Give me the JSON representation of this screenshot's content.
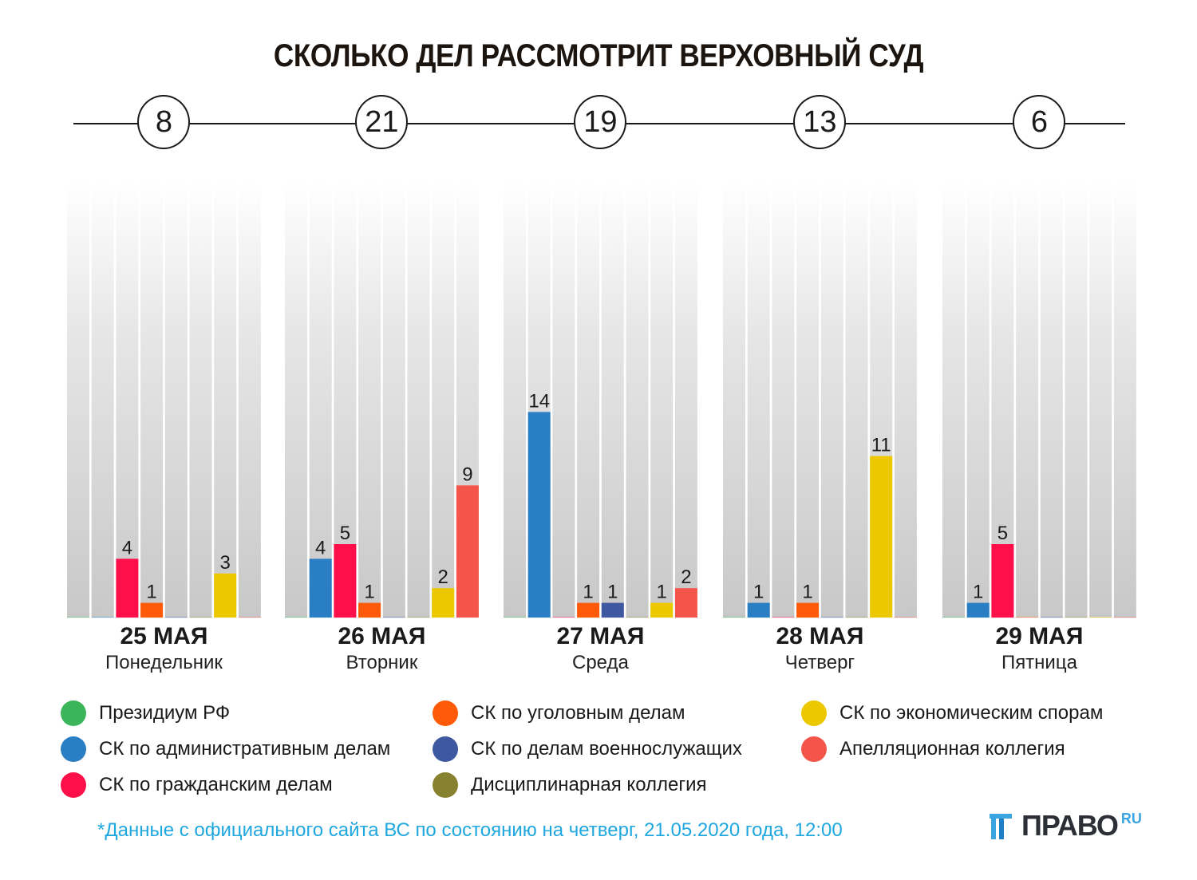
{
  "title": "СКОЛЬКО ДЕЛ РАССМОТРИТ ВЕРХОВНЫЙ СУД",
  "legend": [
    {
      "label": "Президиум РФ",
      "color": "#3cb55a"
    },
    {
      "label": "СК по административным делам",
      "color": "#2a7fc4"
    },
    {
      "label": "СК по гражданским делам",
      "color": "#ff0f4a"
    },
    {
      "label": "СК по уголовным делам",
      "color": "#ff5a08"
    },
    {
      "label": "СК по делам военнослужащих",
      "color": "#3f59a0"
    },
    {
      "label": "Дисциплинарная коллегия",
      "color": "#878230"
    },
    {
      "label": "СК по экономическим спорам",
      "color": "#ecc800"
    },
    {
      "label": "Апелляционная коллегия",
      "color": "#f45548"
    }
  ],
  "footnote": "*Данные с официального сайта ВС по состоянию на четверг, 21.05.2020 года, 12:00",
  "logo": {
    "text": "ПРАВО",
    "sup": "RU"
  },
  "chart_data": {
    "type": "bar",
    "title": "СКОЛЬКО ДЕЛ РАССМОТРИТ ВЕРХОВНЫЙ СУД",
    "categories": [
      "25 МАЯ",
      "26 МАЯ",
      "27 МАЯ",
      "28 МАЯ",
      "29 МАЯ"
    ],
    "days": [
      {
        "date": "25 МАЯ",
        "weekday": "Понедельник",
        "total": "8"
      },
      {
        "date": "26 МАЯ",
        "weekday": "Вторник",
        "total": "21"
      },
      {
        "date": "27 МАЯ",
        "weekday": "Среда",
        "total": "19"
      },
      {
        "date": "28 МАЯ",
        "weekday": "Четверг",
        "total": "13"
      },
      {
        "date": "29 МАЯ",
        "weekday": "Пятница",
        "total": "6"
      }
    ],
    "series": [
      {
        "name": "Президиум РФ",
        "values": [
          0,
          0,
          0,
          0,
          0
        ]
      },
      {
        "name": "СК по административным делам",
        "values": [
          0,
          4,
          14,
          1,
          1
        ]
      },
      {
        "name": "СК по гражданским делам",
        "values": [
          4,
          5,
          0,
          0,
          5
        ]
      },
      {
        "name": "СК по уголовным делам",
        "values": [
          1,
          1,
          1,
          1,
          0
        ]
      },
      {
        "name": "СК по делам военнослужащих",
        "values": [
          0,
          0,
          1,
          0,
          0
        ]
      },
      {
        "name": "Дисциплинарная коллегия",
        "values": [
          0,
          0,
          0,
          0,
          0
        ]
      },
      {
        "name": "СК по экономическим спорам",
        "values": [
          3,
          2,
          1,
          11,
          0
        ]
      },
      {
        "name": "Апелляционная коллегия",
        "values": [
          0,
          9,
          2,
          0,
          0
        ]
      }
    ],
    "xlabel": "",
    "ylabel": "",
    "ylim": [
      0,
      30
    ],
    "grid": false,
    "legend_position": "bottom"
  }
}
